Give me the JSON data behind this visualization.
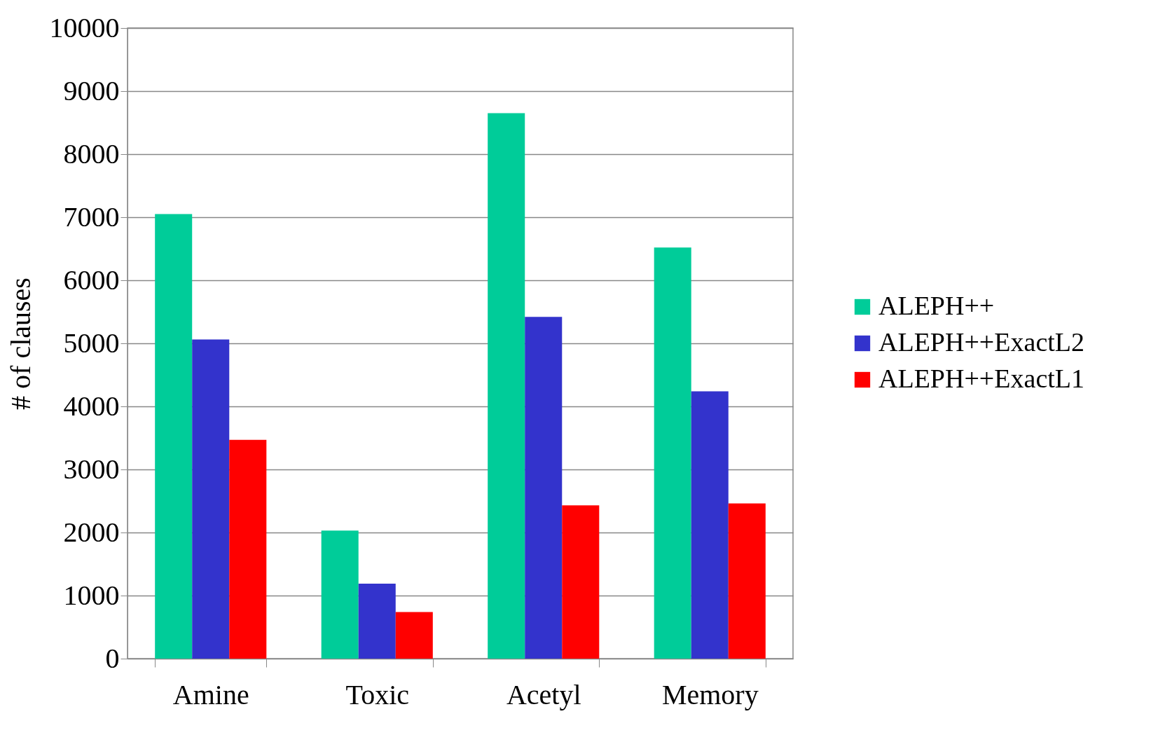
{
  "chart_data": {
    "type": "bar",
    "ylabel": "# of clauses",
    "categories": [
      "Amine",
      "Toxic",
      "Acetyl",
      "Memory"
    ],
    "series": [
      {
        "name": "ALEPH++",
        "color": "#00cc99",
        "values": [
          7050,
          2030,
          8650,
          6520
        ]
      },
      {
        "name": "ALEPH++ExactL2",
        "color": "#3333cc",
        "values": [
          5060,
          1190,
          5420,
          4240
        ]
      },
      {
        "name": "ALEPH++ExactL1",
        "color": "#ff0000",
        "values": [
          3470,
          740,
          2430,
          2460
        ]
      }
    ],
    "ylim": [
      0,
      10000
    ],
    "yticks": [
      0,
      1000,
      2000,
      3000,
      4000,
      5000,
      6000,
      7000,
      8000,
      9000,
      10000
    ],
    "grid": "y",
    "legend": "right"
  }
}
